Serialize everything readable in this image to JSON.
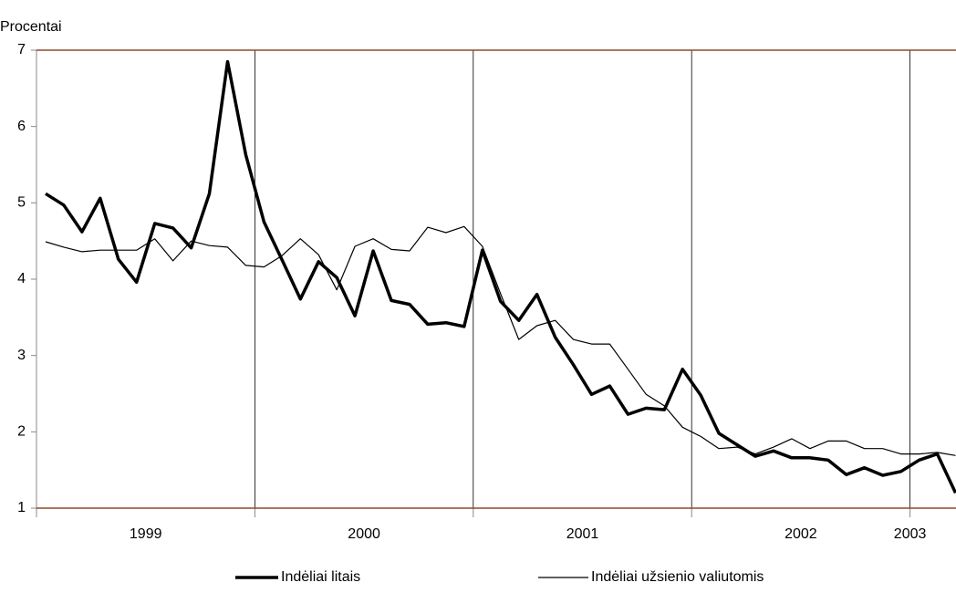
{
  "chart_data": {
    "type": "line",
    "y_label": "Procentai",
    "categories": [
      null,
      null,
      null,
      null,
      null,
      null,
      "1999",
      null,
      null,
      null,
      null,
      null,
      null,
      null,
      null,
      null,
      null,
      null,
      "2000",
      null,
      null,
      null,
      null,
      null,
      null,
      null,
      null,
      null,
      null,
      null,
      "2001",
      null,
      null,
      null,
      null,
      null,
      null,
      null,
      null,
      null,
      null,
      null,
      "2002",
      null,
      null,
      null,
      null,
      null,
      "2003",
      null,
      null
    ],
    "ylim": [
      1,
      7
    ],
    "yticks": [
      1,
      2,
      3,
      4,
      5,
      6,
      7
    ],
    "grid": false,
    "legend": "bottom",
    "series": [
      {
        "name": "Indėliai litais",
        "color": "#000000",
        "width": 3.5,
        "values": [
          5.12,
          4.97,
          4.62,
          5.06,
          4.26,
          3.96,
          4.73,
          4.67,
          4.41,
          5.12,
          6.85,
          5.63,
          4.75,
          4.25,
          3.74,
          4.23,
          4.02,
          3.52,
          4.37,
          3.72,
          3.67,
          3.41,
          3.43,
          3.38,
          4.38,
          3.71,
          3.46,
          3.8,
          3.24,
          2.88,
          2.49,
          2.6,
          2.23,
          2.31,
          2.29,
          2.82,
          2.48,
          1.98,
          1.83,
          1.68,
          1.75,
          1.66,
          1.66,
          1.63,
          1.44,
          1.53,
          1.43,
          1.48,
          1.63,
          1.71,
          1.2
        ]
      },
      {
        "name": "Indėliai užsienio valiutomis",
        "color": "#000000",
        "width": 1.2,
        "values": [
          4.49,
          4.42,
          4.36,
          4.38,
          4.38,
          4.38,
          4.53,
          4.24,
          4.5,
          4.44,
          4.42,
          4.18,
          4.16,
          4.31,
          4.53,
          4.32,
          3.86,
          4.43,
          4.53,
          4.39,
          4.37,
          4.68,
          4.61,
          4.69,
          4.43,
          3.81,
          3.21,
          3.39,
          3.46,
          3.21,
          3.15,
          3.15,
          2.82,
          2.49,
          2.34,
          2.06,
          1.94,
          1.78,
          1.8,
          1.71,
          1.8,
          1.91,
          1.78,
          1.88,
          1.88,
          1.78,
          1.78,
          1.71,
          1.71,
          1.73,
          1.69
        ]
      }
    ]
  }
}
